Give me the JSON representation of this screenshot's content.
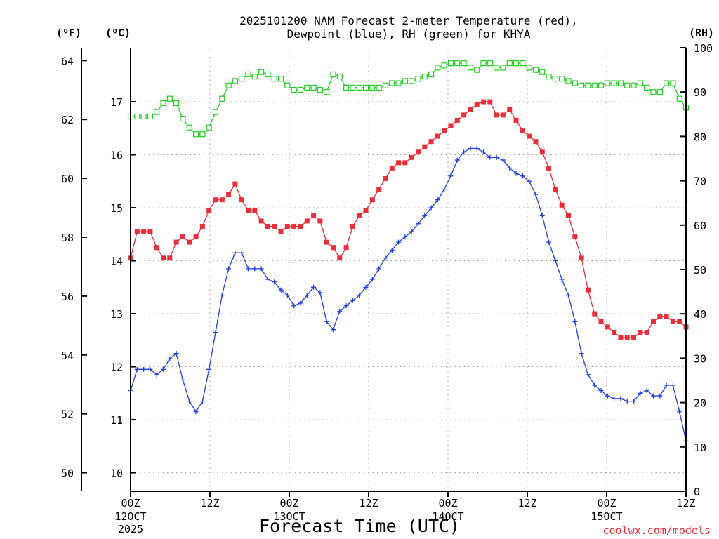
{
  "chart_data": {
    "type": "line",
    "title": "2025101200 NAM Forecast 2-meter Temperature (red),",
    "subtitle": "Dewpoint (blue), RH (green) for KHYA",
    "xlabel": "Forecast Time (UTC)",
    "credit": "coolwx.com/models",
    "units": {
      "fahrenheit": "(ºF)",
      "celsius": "(ºC)",
      "rh": "(RH)"
    },
    "x_hours_range": [
      0,
      84
    ],
    "x_ticks": [
      {
        "hour": 0,
        "label": "00Z",
        "date": "12OCT",
        "year": "2025"
      },
      {
        "hour": 12,
        "label": "12Z",
        "date": "",
        "year": ""
      },
      {
        "hour": 24,
        "label": "00Z",
        "date": "13OCT",
        "year": ""
      },
      {
        "hour": 36,
        "label": "12Z",
        "date": "",
        "year": ""
      },
      {
        "hour": 48,
        "label": "00Z",
        "date": "14OCT",
        "year": ""
      },
      {
        "hour": 60,
        "label": "12Z",
        "date": "",
        "year": ""
      },
      {
        "hour": 72,
        "label": "00Z",
        "date": "15OCT",
        "year": ""
      },
      {
        "hour": 84,
        "label": "12Z",
        "date": "",
        "year": ""
      }
    ],
    "celsius_range": [
      9.65,
      18.02
    ],
    "celsius_ticks": [
      "10",
      "11",
      "12",
      "13",
      "14",
      "15",
      "16",
      "17"
    ],
    "fahrenheit_ticks": [
      "50",
      "52",
      "54",
      "56",
      "58",
      "60",
      "62",
      "64"
    ],
    "rh_range": [
      0,
      100
    ],
    "rh_ticks": [
      "0",
      "10",
      "20",
      "30",
      "40",
      "50",
      "60",
      "70",
      "80",
      "90",
      "100"
    ],
    "series": [
      {
        "name": "Temperature",
        "units": "C",
        "color": "#e8303a",
        "marker": "filled-square",
        "values": [
          14.05,
          14.55,
          14.55,
          14.55,
          14.25,
          14.05,
          14.05,
          14.35,
          14.45,
          14.35,
          14.45,
          14.65,
          14.95,
          15.15,
          15.15,
          15.25,
          15.45,
          15.15,
          14.95,
          14.95,
          14.75,
          14.65,
          14.65,
          14.55,
          14.65,
          14.65,
          14.65,
          14.75,
          14.85,
          14.75,
          14.35,
          14.25,
          14.05,
          14.25,
          14.65,
          14.85,
          14.95,
          15.15,
          15.35,
          15.55,
          15.75,
          15.85,
          15.85,
          15.95,
          16.05,
          16.15,
          16.25,
          16.35,
          16.45,
          16.55,
          16.65,
          16.75,
          16.85,
          16.95,
          17.0,
          17.0,
          16.75,
          16.75,
          16.85,
          16.65,
          16.45,
          16.35,
          16.25,
          16.05,
          15.75,
          15.35,
          15.05,
          14.85,
          14.45,
          14.05,
          13.45,
          13.0,
          12.85,
          12.75,
          12.65,
          12.55,
          12.55,
          12.55,
          12.65,
          12.65,
          12.85,
          12.95,
          12.95,
          12.85,
          12.85,
          12.75
        ]
      },
      {
        "name": "Dewpoint",
        "units": "C",
        "color": "#2040e0",
        "marker": "plus",
        "values": [
          11.55,
          11.95,
          11.95,
          11.95,
          11.85,
          11.95,
          12.15,
          12.25,
          11.75,
          11.35,
          11.15,
          11.35,
          11.95,
          12.65,
          13.35,
          13.85,
          14.15,
          14.15,
          13.85,
          13.85,
          13.85,
          13.65,
          13.6,
          13.45,
          13.35,
          13.15,
          13.2,
          13.35,
          13.5,
          13.4,
          12.85,
          12.7,
          13.05,
          13.15,
          13.25,
          13.35,
          13.5,
          13.65,
          13.85,
          14.05,
          14.2,
          14.35,
          14.45,
          14.55,
          14.7,
          14.85,
          15.0,
          15.15,
          15.35,
          15.6,
          15.9,
          16.05,
          16.12,
          16.12,
          16.05,
          15.95,
          15.95,
          15.9,
          15.75,
          15.65,
          15.6,
          15.5,
          15.25,
          14.85,
          14.35,
          14.0,
          13.65,
          13.35,
          12.85,
          12.25,
          11.85,
          11.65,
          11.55,
          11.45,
          11.4,
          11.4,
          11.35,
          11.35,
          11.5,
          11.55,
          11.45,
          11.45,
          11.65,
          11.65,
          11.15,
          10.6
        ]
      },
      {
        "name": "RH",
        "units": "%",
        "color": "#22cc22",
        "marker": "open-square",
        "values": [
          84.5,
          84.5,
          84.5,
          84.5,
          85.5,
          87.5,
          88.5,
          87.5,
          84,
          82,
          80.5,
          80.5,
          82,
          85.5,
          88.5,
          91.5,
          92.5,
          93,
          94,
          93.5,
          94.5,
          94,
          93,
          93,
          91.5,
          90.5,
          90.5,
          91,
          91,
          90.5,
          90,
          94,
          93.5,
          91,
          91,
          91,
          91,
          91,
          91,
          91.5,
          92,
          92,
          92.5,
          92.5,
          93,
          93.5,
          94,
          95.5,
          96,
          96.5,
          96.5,
          96.5,
          95.5,
          95,
          96.5,
          96.5,
          95.5,
          95.5,
          96.5,
          96.5,
          96.5,
          95.5,
          95,
          94.5,
          93.5,
          93,
          93,
          92.5,
          92,
          91.5,
          91.5,
          91.5,
          91.5,
          92,
          92,
          92,
          91.5,
          91.5,
          92,
          91,
          90,
          90,
          92,
          92,
          88.5,
          86.5
        ]
      }
    ]
  }
}
